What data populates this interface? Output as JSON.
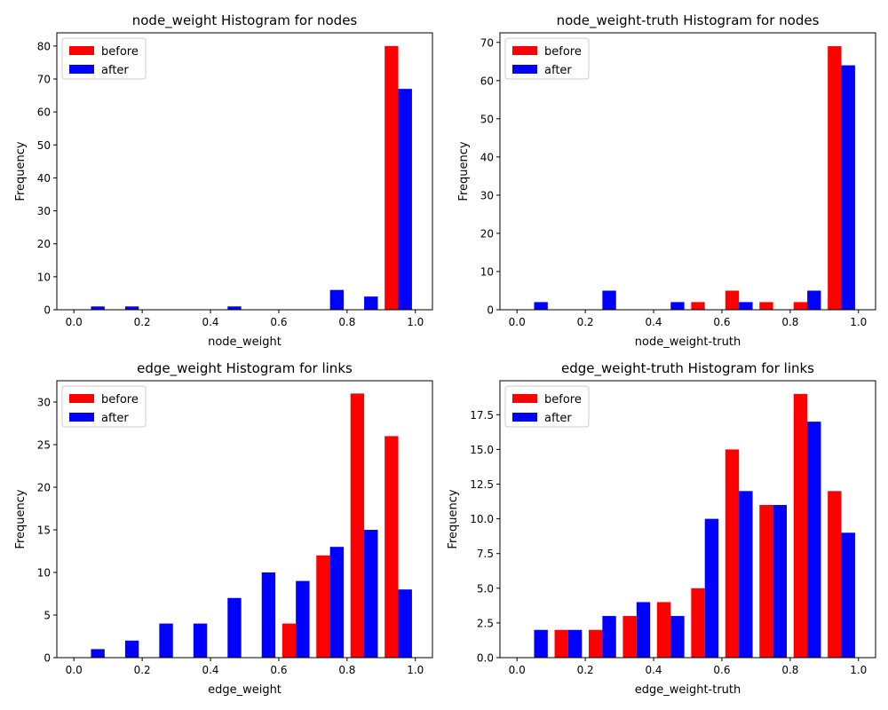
{
  "chart_data": [
    {
      "type": "bar",
      "title": "node_weight Histogram for nodes",
      "xlabel": "node_weight",
      "ylabel": "Frequency",
      "xlim": [
        -0.05,
        1.05
      ],
      "ylim": [
        0,
        84
      ],
      "xticks": [
        0.0,
        0.2,
        0.4,
        0.6,
        0.8,
        1.0
      ],
      "xtick_labels": [
        "0.0",
        "0.2",
        "0.4",
        "0.6",
        "0.8",
        "1.0"
      ],
      "yticks": [
        0,
        10,
        20,
        30,
        40,
        50,
        60,
        70,
        80
      ],
      "ytick_labels": [
        "0",
        "10",
        "20",
        "30",
        "40",
        "50",
        "60",
        "70",
        "80"
      ],
      "bins": [
        [
          0.0,
          0.1
        ],
        [
          0.1,
          0.2
        ],
        [
          0.2,
          0.3
        ],
        [
          0.3,
          0.4
        ],
        [
          0.4,
          0.5
        ],
        [
          0.5,
          0.6
        ],
        [
          0.6,
          0.7
        ],
        [
          0.7,
          0.8
        ],
        [
          0.8,
          0.9
        ],
        [
          0.9,
          1.0
        ]
      ],
      "series": [
        {
          "name": "before",
          "color": "#ff0000",
          "values": [
            0,
            0,
            0,
            0,
            0,
            0,
            0,
            0,
            0,
            80
          ]
        },
        {
          "name": "after",
          "color": "#0000ff",
          "values": [
            1,
            1,
            0,
            0,
            1,
            0,
            0,
            6,
            4,
            67
          ]
        }
      ],
      "legend": "top-left",
      "grid": false
    },
    {
      "type": "bar",
      "title": "node_weight-truth Histogram for nodes",
      "xlabel": "node_weight-truth",
      "ylabel": "Frequency",
      "xlim": [
        -0.05,
        1.05
      ],
      "ylim": [
        0,
        72.5
      ],
      "xticks": [
        0.0,
        0.2,
        0.4,
        0.6,
        0.8,
        1.0
      ],
      "xtick_labels": [
        "0.0",
        "0.2",
        "0.4",
        "0.6",
        "0.8",
        "1.0"
      ],
      "yticks": [
        0,
        10,
        20,
        30,
        40,
        50,
        60,
        70
      ],
      "ytick_labels": [
        "0",
        "10",
        "20",
        "30",
        "40",
        "50",
        "60",
        "70"
      ],
      "bins": [
        [
          0.0,
          0.1
        ],
        [
          0.1,
          0.2
        ],
        [
          0.2,
          0.3
        ],
        [
          0.3,
          0.4
        ],
        [
          0.4,
          0.5
        ],
        [
          0.5,
          0.6
        ],
        [
          0.6,
          0.7
        ],
        [
          0.7,
          0.8
        ],
        [
          0.8,
          0.9
        ],
        [
          0.9,
          1.0
        ]
      ],
      "series": [
        {
          "name": "before",
          "color": "#ff0000",
          "values": [
            0,
            0,
            0,
            0,
            0,
            2,
            5,
            2,
            2,
            69
          ]
        },
        {
          "name": "after",
          "color": "#0000ff",
          "values": [
            2,
            0,
            5,
            0,
            2,
            0,
            2,
            0,
            5,
            64
          ]
        }
      ],
      "legend": "top-left",
      "grid": false
    },
    {
      "type": "bar",
      "title": "edge_weight Histogram for links",
      "xlabel": "edge_weight",
      "ylabel": "Frequency",
      "xlim": [
        -0.05,
        1.05
      ],
      "ylim": [
        0,
        32.5
      ],
      "xticks": [
        0.0,
        0.2,
        0.4,
        0.6,
        0.8,
        1.0
      ],
      "xtick_labels": [
        "0.0",
        "0.2",
        "0.4",
        "0.6",
        "0.8",
        "1.0"
      ],
      "yticks": [
        0,
        5,
        10,
        15,
        20,
        25,
        30
      ],
      "ytick_labels": [
        "0",
        "5",
        "10",
        "15",
        "20",
        "25",
        "30"
      ],
      "bins": [
        [
          0.0,
          0.1
        ],
        [
          0.1,
          0.2
        ],
        [
          0.2,
          0.3
        ],
        [
          0.3,
          0.4
        ],
        [
          0.4,
          0.5
        ],
        [
          0.5,
          0.6
        ],
        [
          0.6,
          0.7
        ],
        [
          0.7,
          0.8
        ],
        [
          0.8,
          0.9
        ],
        [
          0.9,
          1.0
        ]
      ],
      "series": [
        {
          "name": "before",
          "color": "#ff0000",
          "values": [
            0,
            0,
            0,
            0,
            0,
            0,
            4,
            12,
            31,
            26
          ]
        },
        {
          "name": "after",
          "color": "#0000ff",
          "values": [
            1,
            2,
            4,
            4,
            7,
            10,
            9,
            13,
            15,
            8
          ]
        }
      ],
      "legend": "top-left",
      "grid": false
    },
    {
      "type": "bar",
      "title": "edge_weight-truth Histogram for links",
      "xlabel": "edge_weight-truth",
      "ylabel": "Frequency",
      "xlim": [
        -0.05,
        1.05
      ],
      "ylim": [
        0,
        19.95
      ],
      "xticks": [
        0.0,
        0.2,
        0.4,
        0.6,
        0.8,
        1.0
      ],
      "xtick_labels": [
        "0.0",
        "0.2",
        "0.4",
        "0.6",
        "0.8",
        "1.0"
      ],
      "yticks": [
        0,
        2.5,
        5,
        7.5,
        10,
        12.5,
        15,
        17.5
      ],
      "ytick_labels": [
        "0.0",
        "2.5",
        "5.0",
        "7.5",
        "10.0",
        "12.5",
        "15.0",
        "17.5"
      ],
      "bins": [
        [
          0.0,
          0.1
        ],
        [
          0.1,
          0.2
        ],
        [
          0.2,
          0.3
        ],
        [
          0.3,
          0.4
        ],
        [
          0.4,
          0.5
        ],
        [
          0.5,
          0.6
        ],
        [
          0.6,
          0.7
        ],
        [
          0.7,
          0.8
        ],
        [
          0.8,
          0.9
        ],
        [
          0.9,
          1.0
        ]
      ],
      "series": [
        {
          "name": "before",
          "color": "#ff0000",
          "values": [
            0,
            2,
            2,
            3,
            4,
            5,
            15,
            11,
            19,
            12
          ]
        },
        {
          "name": "after",
          "color": "#0000ff",
          "values": [
            2,
            2,
            3,
            4,
            3,
            10,
            12,
            11,
            17,
            9
          ]
        }
      ],
      "legend": "top-left",
      "grid": false
    }
  ]
}
